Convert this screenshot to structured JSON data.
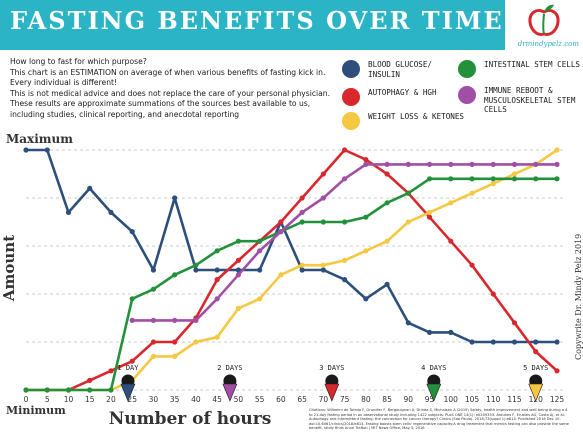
{
  "header": {
    "title": "FASTING BENEFITS OVER TIME",
    "site": "drmindypelz.com",
    "bg_color": "#2bb3c6"
  },
  "intro": {
    "lines": [
      "How long to fast for which purpose?",
      "This chart is an ESTIMATION on average of when various benefits of fasting kick in.",
      "Every individual is different!",
      "This is not medical advice and does not replace the care of your personal physician.",
      "These results are approximate summations of the sources best available to us,",
      "including studies, clinical reporting, and anecdotal reporting"
    ]
  },
  "legend": [
    {
      "label": "Blood Glucose/ Insulin",
      "color": "#2c4f7c"
    },
    {
      "label": "Autophagy & HGH",
      "color": "#d8282e"
    },
    {
      "label": "Weight Loss & Ketones",
      "color": "#f5c842"
    },
    {
      "label": "Intestinal Stem Cells",
      "color": "#23913c"
    },
    {
      "label": "Immune Reboot & Musculoskeletal Stem Cells",
      "color": "#a04fa5"
    }
  ],
  "chart_data": {
    "type": "line",
    "xlabel": "Number of hours",
    "ylabel": "Amount",
    "y_top_label": "Maximum",
    "y_bottom_label": "Minimum",
    "x": [
      0,
      5,
      10,
      15,
      20,
      25,
      30,
      35,
      40,
      45,
      50,
      55,
      60,
      65,
      70,
      75,
      80,
      85,
      90,
      95,
      100,
      105,
      110,
      115,
      120,
      125
    ],
    "xlim": [
      0,
      125
    ],
    "ylim": [
      0,
      100
    ],
    "grid": "horizontal dashed",
    "series": [
      {
        "name": "Blood Glucose/ Insulin",
        "color": "#2c4f7c",
        "values": [
          100,
          100,
          74,
          84,
          74,
          66,
          50,
          80,
          50,
          50,
          50,
          50,
          70,
          50,
          50,
          46,
          38,
          44,
          28,
          24,
          24,
          20,
          20,
          20,
          20,
          20
        ]
      },
      {
        "name": "Autophagy & HGH",
        "color": "#d8282e",
        "values": [
          0,
          0,
          0,
          4,
          8,
          12,
          20,
          20,
          30,
          46,
          54,
          62,
          70,
          80,
          90,
          100,
          96,
          90,
          82,
          72,
          62,
          52,
          40,
          28,
          16,
          8
        ]
      },
      {
        "name": "Weight Loss & Ketones",
        "color": "#f5c842",
        "values": [
          0,
          0,
          0,
          0,
          0,
          4,
          14,
          14,
          20,
          22,
          34,
          38,
          48,
          52,
          52,
          54,
          58,
          62,
          70,
          74,
          78,
          82,
          86,
          90,
          94,
          100
        ]
      },
      {
        "name": "Intestinal Stem Cells",
        "color": "#23913c",
        "values": [
          0,
          0,
          0,
          0,
          0,
          38,
          42,
          48,
          52,
          58,
          62,
          62,
          66,
          70,
          70,
          70,
          72,
          78,
          82,
          88,
          88,
          88,
          88,
          88,
          88,
          88
        ]
      },
      {
        "name": "Immune Reboot & Musculoskeletal Stem Cells",
        "color": "#a04fa5",
        "values": [
          null,
          null,
          null,
          null,
          null,
          29,
          29,
          29,
          29,
          38,
          48,
          58,
          66,
          74,
          80,
          88,
          94,
          94,
          94,
          94,
          94,
          94,
          94,
          94,
          94,
          94
        ]
      }
    ],
    "day_markers": [
      {
        "label": "1 DAY",
        "hour": 24,
        "color": "#2c4f7c"
      },
      {
        "label": "2 DAYS",
        "hour": 48,
        "color": "#a04fa5"
      },
      {
        "label": "3 DAYS",
        "hour": 72,
        "color": "#d8282e"
      },
      {
        "label": "4 DAYS",
        "hour": 96,
        "color": "#23913c"
      },
      {
        "label": "5 DAYS",
        "hour": 120,
        "color": "#f5c842"
      }
    ]
  },
  "sources": "Citations: Wilhelmi de Toledo F, Grundler F, Bergouignan A, Drinda S, Michalsen A (2019) Safety, health improvement and well-being during a 4 to 21-day fasting period in an observational study including 1422 subjects. PLoS ONE 14(1): e0209353. Antunes F, Erustes AG, Costa AJ, et al. Autophagy and intermittent fasting: the connection for cancer therapy? Clinics (Sao Paulo). 2018;73(suppl 1):e814. Published 2018 Dec 10. doi:10.6061/clinics/2018/e814. Fasting boosts stem cells' regenerative capacity:A drug treatment that mimics fasting can also provide the same benefit, study finds Anne Trafton | MIT News Office, May 3, 2018",
  "copyright": "Copywrite Dr. Mindy Pelz 2019"
}
